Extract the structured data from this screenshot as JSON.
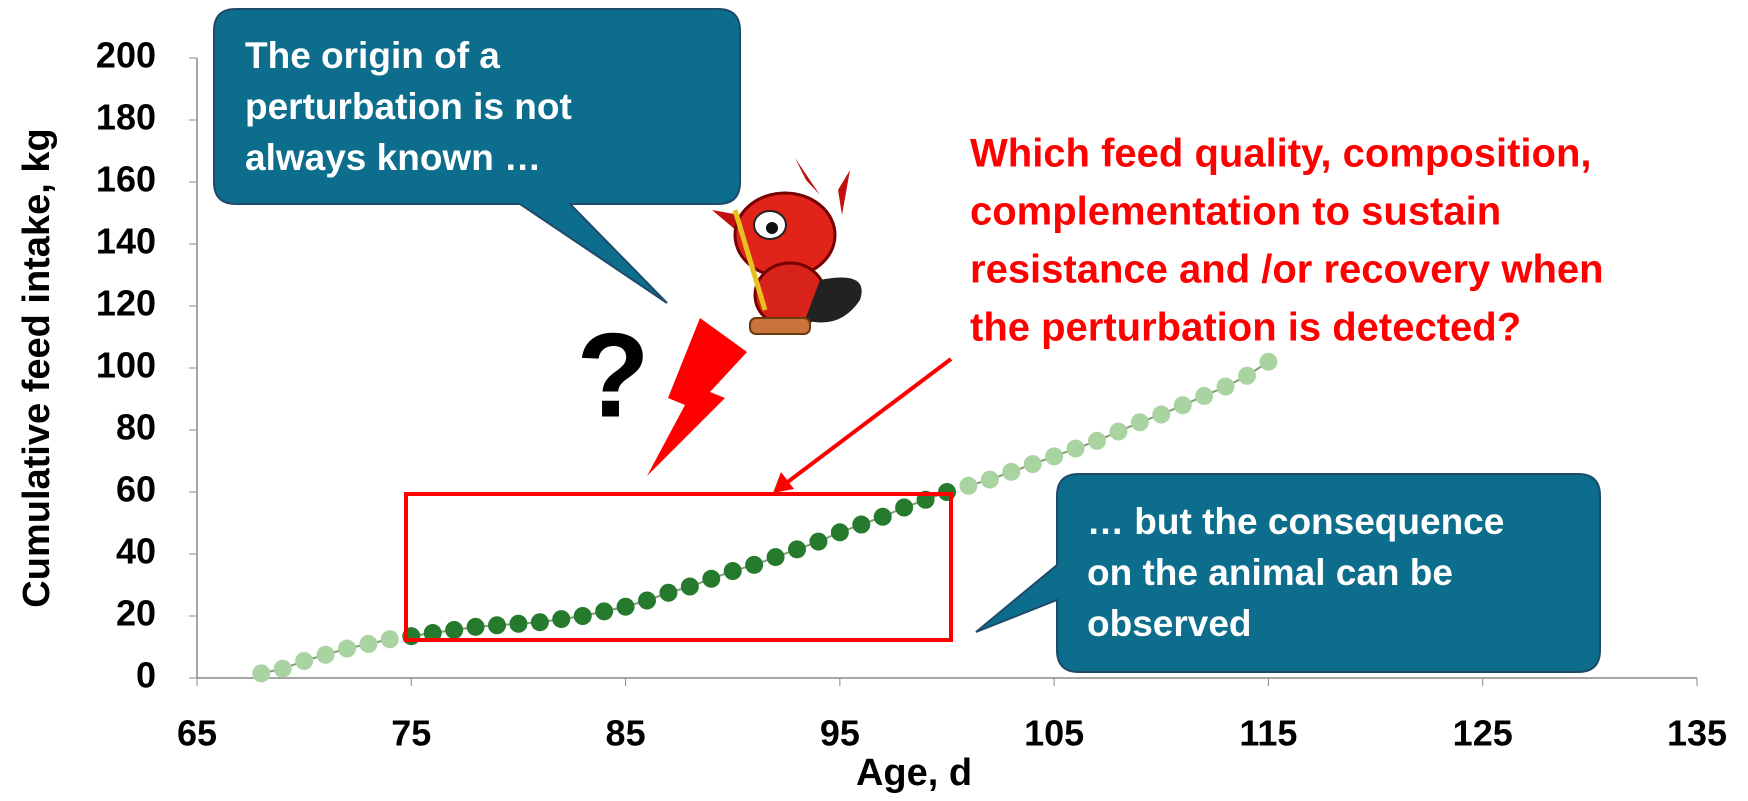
{
  "chart_data": {
    "type": "scatter",
    "xlabel": "Age, d",
    "ylabel": "Cumulative feed intake, kg",
    "xlim": [
      65,
      135
    ],
    "xticks": [
      65,
      75,
      85,
      95,
      105,
      115,
      125,
      135
    ],
    "ylim": [
      0,
      200
    ],
    "yticks": [
      0,
      20,
      40,
      60,
      80,
      100,
      120,
      140,
      160,
      180,
      200
    ],
    "line_color": "#7f9f72",
    "series": [
      {
        "color": "#a9d3a0",
        "x": [
          68,
          69,
          70,
          71,
          72,
          73,
          74,
          101,
          102,
          103,
          104,
          105,
          106,
          107,
          108,
          109,
          110,
          111,
          112,
          113,
          114,
          115
        ],
        "values": [
          1.5,
          3,
          5.5,
          7.5,
          9.5,
          11,
          12.5,
          62,
          64,
          66.5,
          69,
          71.5,
          74,
          76.5,
          79.5,
          82.5,
          85,
          88,
          91,
          94,
          97.5,
          102
        ]
      },
      {
        "color": "#267a2e",
        "x": [
          75,
          76,
          77,
          78,
          79,
          80,
          81,
          82,
          83,
          84,
          85,
          86,
          87,
          88,
          89,
          90,
          91,
          92,
          93,
          94,
          95,
          96,
          97,
          98,
          99,
          100
        ],
        "values": [
          13.5,
          14.5,
          15.5,
          16.5,
          17,
          17.5,
          18,
          19,
          20,
          21.5,
          23,
          25,
          27.5,
          29.5,
          32,
          34.5,
          36.5,
          39,
          41.5,
          44,
          47,
          49.5,
          52,
          55,
          57.5,
          60
        ]
      }
    ],
    "annotations": {
      "origin_callout": [
        "The origin of a",
        "perturbation is not",
        "always known …"
      ],
      "question": "?",
      "red_question": [
        "Which feed quality, composition,",
        "complementation to sustain",
        "resistance and /or recovery when",
        "the perturbation is detected?"
      ],
      "consequence_callout": [
        "… but the consequence",
        "on the animal can be",
        "observed"
      ]
    }
  }
}
